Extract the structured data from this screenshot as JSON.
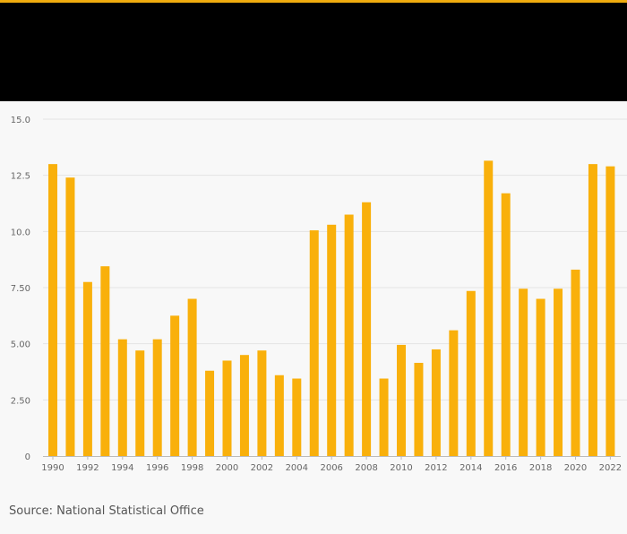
{
  "source": "Source: National Statistical Office",
  "colors": {
    "accent": "#f0ac0e",
    "bar": "#f9b00b",
    "header": "#000000",
    "grid": "#e3e3e3",
    "axis_text": "#666666"
  },
  "chart_data": {
    "type": "bar",
    "title": "",
    "xlabel": "",
    "ylabel": "",
    "ylim": [
      0,
      15
    ],
    "y_ticks": [
      {
        "value": 0,
        "label": "0"
      },
      {
        "value": 2.5,
        "label": "2.50"
      },
      {
        "value": 5,
        "label": "5.00"
      },
      {
        "value": 7.5,
        "label": "7.50"
      },
      {
        "value": 10,
        "label": "10.0"
      },
      {
        "value": 12.5,
        "label": "12.5"
      },
      {
        "value": 15,
        "label": "15.0"
      }
    ],
    "categories": [
      "1990",
      "1991",
      "1992",
      "1993",
      "1994",
      "1995",
      "1996",
      "1997",
      "1998",
      "1999",
      "2000",
      "2001",
      "2002",
      "2003",
      "2004",
      "2005",
      "2006",
      "2007",
      "2008",
      "2009",
      "2010",
      "2011",
      "2012",
      "2013",
      "2014",
      "2015",
      "2016",
      "2017",
      "2018",
      "2019",
      "2020",
      "2021",
      "2022"
    ],
    "x_tick_labels": [
      "1990",
      "1992",
      "1994",
      "1996",
      "1998",
      "2000",
      "2002",
      "2004",
      "2006",
      "2008",
      "2010",
      "2012",
      "2014",
      "2016",
      "2018",
      "2020",
      "2022"
    ],
    "values": [
      13.0,
      12.4,
      7.75,
      8.45,
      5.2,
      4.7,
      5.2,
      6.25,
      7.0,
      3.8,
      4.25,
      4.5,
      4.7,
      3.6,
      3.45,
      10.05,
      10.3,
      10.75,
      11.3,
      3.45,
      4.95,
      4.15,
      4.75,
      5.6,
      7.35,
      13.15,
      11.7,
      7.45,
      7.0,
      7.45,
      8.3,
      13.0,
      12.9
    ]
  }
}
